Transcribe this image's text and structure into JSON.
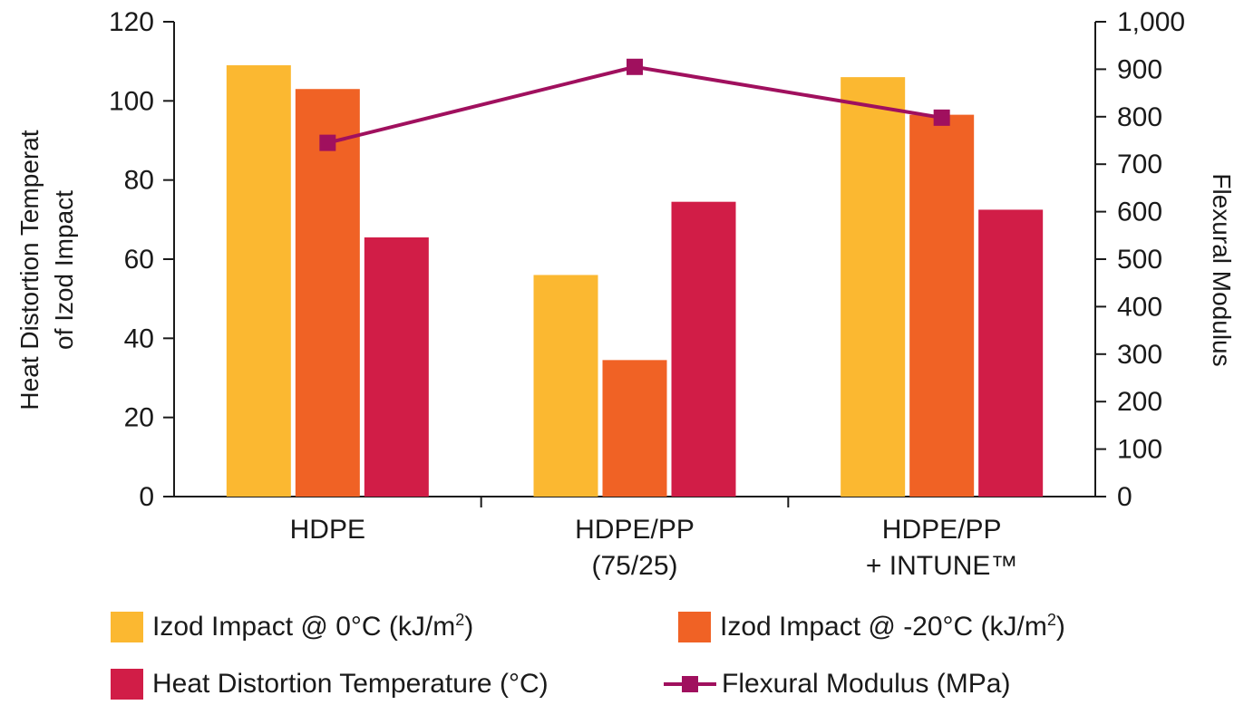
{
  "chart_data": {
    "type": "bar",
    "categories": [
      {
        "line1": "HDPE",
        "line2": ""
      },
      {
        "line1": "HDPE/PP",
        "line2": "(75/25)"
      },
      {
        "line1": "HDPE/PP",
        "line2": "+ INTUNE™"
      }
    ],
    "left_axis": {
      "title_line1": "Heat Distortion Temperat",
      "title_line2": "of Izod Impact",
      "ylim": [
        0,
        120
      ],
      "ticks": [
        0,
        20,
        40,
        60,
        80,
        100,
        120
      ],
      "tick_labels": [
        "0",
        "20",
        "40",
        "60",
        "80",
        "100",
        "120"
      ]
    },
    "right_axis": {
      "title": "Flexural Modulus",
      "ylim": [
        0,
        1000
      ],
      "ticks": [
        0,
        100,
        200,
        300,
        400,
        500,
        600,
        700,
        800,
        900,
        1000
      ],
      "tick_labels": [
        "0",
        "100",
        "200",
        "300",
        "400",
        "500",
        "600",
        "700",
        "800",
        "900",
        "1,000"
      ]
    },
    "series": [
      {
        "name": "Izod Impact @ 0°C (kJ/m²)",
        "kind": "bar",
        "axis": "left",
        "color": "#FBB831",
        "values": [
          109,
          56,
          106
        ]
      },
      {
        "name": "Izod Impact @ -20°C (kJ/m²)",
        "kind": "bar",
        "axis": "left",
        "color": "#F06225",
        "values": [
          103,
          34.5,
          96.5
        ]
      },
      {
        "name": "Heat Distortion Temperature (°C)",
        "kind": "bar",
        "axis": "left",
        "color": "#D11D47",
        "values": [
          65.5,
          74.5,
          72.5
        ]
      },
      {
        "name": "Flexural Modulus (MPa)",
        "kind": "line",
        "axis": "right",
        "color": "#A0105E",
        "marker": "square",
        "values": [
          745,
          905,
          798
        ]
      }
    ],
    "grid": false,
    "legend_position": "bottom"
  },
  "legend": {
    "items": [
      {
        "prefix": "Izod Impact @ 0°C (kJ/m",
        "sup": "2",
        "suffix": ")",
        "color": "#FBB831"
      },
      {
        "prefix": "Izod Impact @ -20°C (kJ/m",
        "sup": "2",
        "suffix": ")",
        "color": "#F06225"
      },
      {
        "prefix": "Heat Distortion Temperature (°C)",
        "sup": "",
        "suffix": "",
        "color": "#D11D47"
      },
      {
        "prefix": "Flexural Modulus (MPa)",
        "sup": "",
        "suffix": "",
        "color": "#A0105E"
      }
    ]
  },
  "colors": {
    "axis": "#1a1a1a",
    "background": "#ffffff"
  }
}
